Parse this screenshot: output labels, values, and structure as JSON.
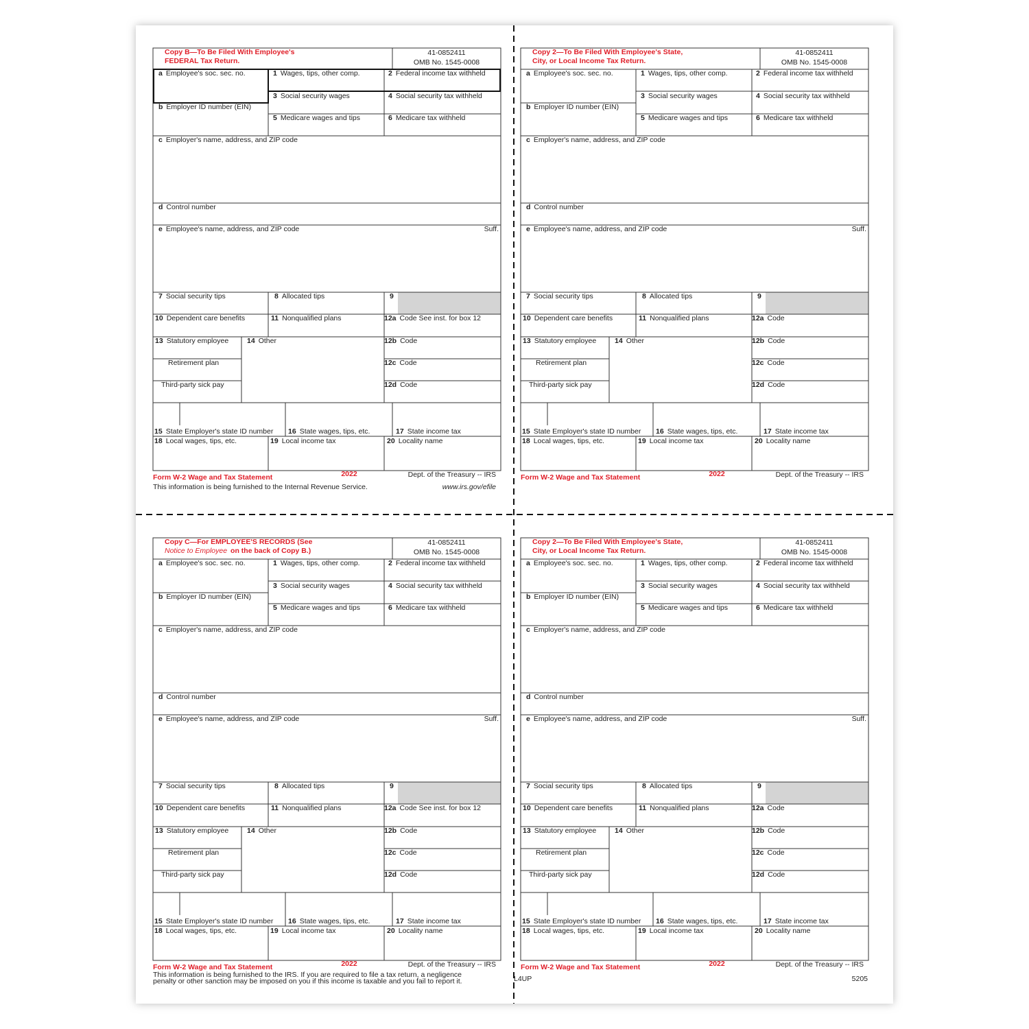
{
  "boxes": {
    "a": {
      "num": "a",
      "text": "Employee's soc. sec. no."
    },
    "b": {
      "num": "b",
      "text": "Employer ID number (EIN)"
    },
    "c": {
      "num": "c",
      "text": "Employer's name, address, and ZIP code"
    },
    "d": {
      "num": "d",
      "text": "Control number"
    },
    "e": {
      "num": "e",
      "text": "Employee's name, address, and ZIP code"
    },
    "suff": "Suff.",
    "b1": {
      "num": "1",
      "text": "Wages, tips, other comp."
    },
    "b2": {
      "num": "2",
      "text": "Federal income tax withheld"
    },
    "b3": {
      "num": "3",
      "text": "Social security wages"
    },
    "b4": {
      "num": "4",
      "text": "Social security tax withheld"
    },
    "b5": {
      "num": "5",
      "text": "Medicare wages and tips"
    },
    "b6": {
      "num": "6",
      "text": "Medicare tax withheld"
    },
    "b7": {
      "num": "7",
      "text": "Social security tips"
    },
    "b8": {
      "num": "8",
      "text": "Allocated tips"
    },
    "b9": {
      "num": "9",
      "text": ""
    },
    "b10": {
      "num": "10",
      "text": "Dependent care benefits"
    },
    "b11": {
      "num": "11",
      "text": "Nonqualified plans"
    },
    "b13": {
      "num": "13",
      "text": "Statutory employee"
    },
    "retirement": "Retirement plan",
    "thirdparty": "Third-party sick pay",
    "b14": {
      "num": "14",
      "text": "Other"
    },
    "b12b": {
      "num": "12b",
      "text": "Code"
    },
    "b12c": {
      "num": "12c",
      "text": "Code"
    },
    "b12d": {
      "num": "12d",
      "text": "Code"
    },
    "b15": {
      "num": "15",
      "text": "State Employer's state ID number"
    },
    "b16": {
      "num": "16",
      "text": "State wages, tips, etc."
    },
    "b17": {
      "num": "17",
      "text": "State income tax"
    },
    "b18": {
      "num": "18",
      "text": "Local wages, tips, etc."
    },
    "b19": {
      "num": "19",
      "text": "Local income tax"
    },
    "b20": {
      "num": "20",
      "text": "Locality name"
    }
  },
  "forms": [
    {
      "title_lines": [
        "Copy B—To Be Filed With Employee's",
        "FEDERAL Tax Return."
      ],
      "ein": "41-0852411",
      "omb": "OMB No. 1545-0008",
      "b12a": {
        "num": "12a",
        "text": "Code   See inst. for box 12"
      },
      "form_name": "Form W-2 Wage and Tax Statement",
      "year": "2022",
      "dept": "Dept. of the Treasury -- IRS",
      "notes": [
        "This information is being furnished to the Internal Revenue Service."
      ],
      "url": "www.irs.gov/efile"
    },
    {
      "title_lines": [
        "Copy 2—To Be Filed With Employee's State,",
        "City, or Local Income Tax Return."
      ],
      "ein": "41-0852411",
      "omb": "OMB No. 1545-0008",
      "b12a": {
        "num": "12a",
        "text": "Code"
      },
      "form_name": "Form W-2 Wage and Tax Statement",
      "year": "2022",
      "dept": "Dept. of the Treasury -- IRS"
    },
    {
      "title_lines": [
        "Copy C—For EMPLOYEE'S RECORDS (See",
        "on the back of Copy B.)"
      ],
      "title_italic": "Notice to Employee",
      "ein": "41-0852411",
      "omb": "OMB No. 1545-0008",
      "b12a": {
        "num": "12a",
        "text": "Code   See inst. for box 12"
      },
      "form_name": "Form W-2 Wage and Tax Statement",
      "year": "2022",
      "dept": "Dept. of the Treasury -- IRS",
      "notes": [
        "This information is being furnished to the IRS. If you are required to file a tax return, a negligence",
        "penalty or other sanction may be imposed on you if this income is taxable and you fail to report it."
      ]
    },
    {
      "title_lines": [
        "Copy 2—To Be Filed With Employee's State,",
        "City, or Local Income Tax Return."
      ],
      "ein": "41-0852411",
      "omb": "OMB No. 1545-0008",
      "b12a": {
        "num": "12a",
        "text": "Code"
      },
      "form_name": "Form W-2 Wage and Tax Statement",
      "year": "2022",
      "dept": "Dept. of the Treasury -- IRS",
      "left_code": "L4UP",
      "right_code": "5205"
    }
  ]
}
